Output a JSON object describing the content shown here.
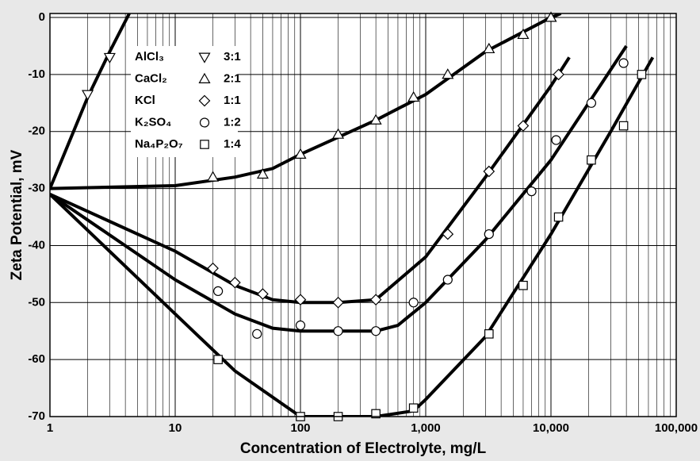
{
  "chart_data": {
    "type": "scatter",
    "x_label": "Concentration of Electrolyte, mg/L",
    "y_label": "Zeta Potential, mV",
    "xscale": "log",
    "xlim": [
      1,
      100000
    ],
    "ylim": [
      -70,
      0.7
    ],
    "xticks": [
      1,
      10,
      100,
      {
        "value": 1000,
        "label": "1,000"
      },
      {
        "value": 10000,
        "label": "10,000"
      },
      {
        "value": 100000,
        "label": "100,000"
      }
    ],
    "xminorticks": [
      2,
      3,
      4,
      5,
      6,
      7,
      8,
      9,
      20,
      30,
      40,
      50,
      60,
      70,
      80,
      90,
      200,
      300,
      400,
      500,
      600,
      700,
      800,
      900,
      2000,
      3000,
      4000,
      5000,
      6000,
      7000,
      8000,
      9000,
      20000,
      30000,
      40000,
      50000,
      60000,
      70000,
      80000,
      90000
    ],
    "yticks": [
      0,
      -10,
      -20,
      -30,
      -40,
      -50,
      -60,
      -70
    ],
    "grid": true,
    "legend": "top-left",
    "series": [
      {
        "name": "AlCl₃",
        "ratio": "3:1",
        "marker": "triangle-down",
        "color": "#000000",
        "x": [
          2,
          3
        ],
        "values": [
          -13.5,
          -7
        ],
        "fit_x": [
          1,
          2,
          3,
          4.3
        ],
        "fit_y": [
          -30,
          -14,
          -6,
          0.7
        ]
      },
      {
        "name": "CaCl₂",
        "ratio": "2:1",
        "marker": "triangle-up",
        "color": "#000000",
        "x": [
          20,
          50,
          100,
          200,
          400,
          800,
          1500,
          3200,
          6000,
          10000
        ],
        "values": [
          -28,
          -27.5,
          -24,
          -20.5,
          -18,
          -14,
          -10,
          -5.5,
          -3,
          0
        ],
        "fit_x": [
          1,
          10,
          30,
          60,
          100,
          200,
          400,
          1000,
          3000,
          10000,
          12000
        ],
        "fit_y": [
          -30,
          -29.5,
          -28,
          -26.5,
          -24,
          -21,
          -18,
          -13.5,
          -6,
          0,
          0.7
        ]
      },
      {
        "name": "KCl",
        "ratio": "1:1",
        "marker": "diamond",
        "color": "#000000",
        "x": [
          20,
          30,
          50,
          100,
          200,
          400,
          1500,
          3200,
          6000,
          11500
        ],
        "values": [
          -44,
          -46.5,
          -48.5,
          -49.5,
          -50,
          -49.5,
          -38,
          -27,
          -19,
          -10
        ],
        "fit_x": [
          1,
          10,
          30,
          60,
          100,
          200,
          400,
          1000,
          3000,
          10000,
          14000
        ],
        "fit_y": [
          -31,
          -41,
          -47,
          -49.5,
          -50,
          -50,
          -49.5,
          -42,
          -28,
          -12,
          -7
        ]
      },
      {
        "name": "K₂SO₄",
        "ratio": "1:2",
        "marker": "circle",
        "color": "#000000",
        "x": [
          22,
          45,
          100,
          200,
          400,
          800,
          1500,
          3200,
          7000,
          11000,
          21000,
          38000
        ],
        "values": [
          -48,
          -55.5,
          -54,
          -55,
          -55,
          -50,
          -46,
          -38,
          -30.5,
          -21.5,
          -15,
          -8
        ],
        "fit_x": [
          1,
          10,
          30,
          60,
          100,
          200,
          400,
          600,
          1000,
          3000,
          10000,
          40000
        ],
        "fit_y": [
          -31,
          -46,
          -52,
          -54.5,
          -55,
          -55,
          -55,
          -54,
          -50,
          -39,
          -25,
          -5
        ]
      },
      {
        "name": "Na₄P₂O₇",
        "ratio": "1:4",
        "marker": "square",
        "color": "#000000",
        "x": [
          22,
          100,
          200,
          400,
          800,
          3200,
          6000,
          11500,
          21000,
          38000,
          53000
        ],
        "values": [
          -60,
          -70,
          -70,
          -69.5,
          -68.5,
          -55.5,
          -47,
          -35,
          -25,
          -19,
          -10
        ],
        "fit_x": [
          1,
          10,
          30,
          100,
          200,
          400,
          800,
          1000,
          3000,
          10000,
          30000,
          65000
        ],
        "fit_y": [
          -31,
          -52,
          -62,
          -70,
          -70,
          -70,
          -69,
          -67,
          -56,
          -38,
          -20,
          -7
        ]
      }
    ]
  }
}
